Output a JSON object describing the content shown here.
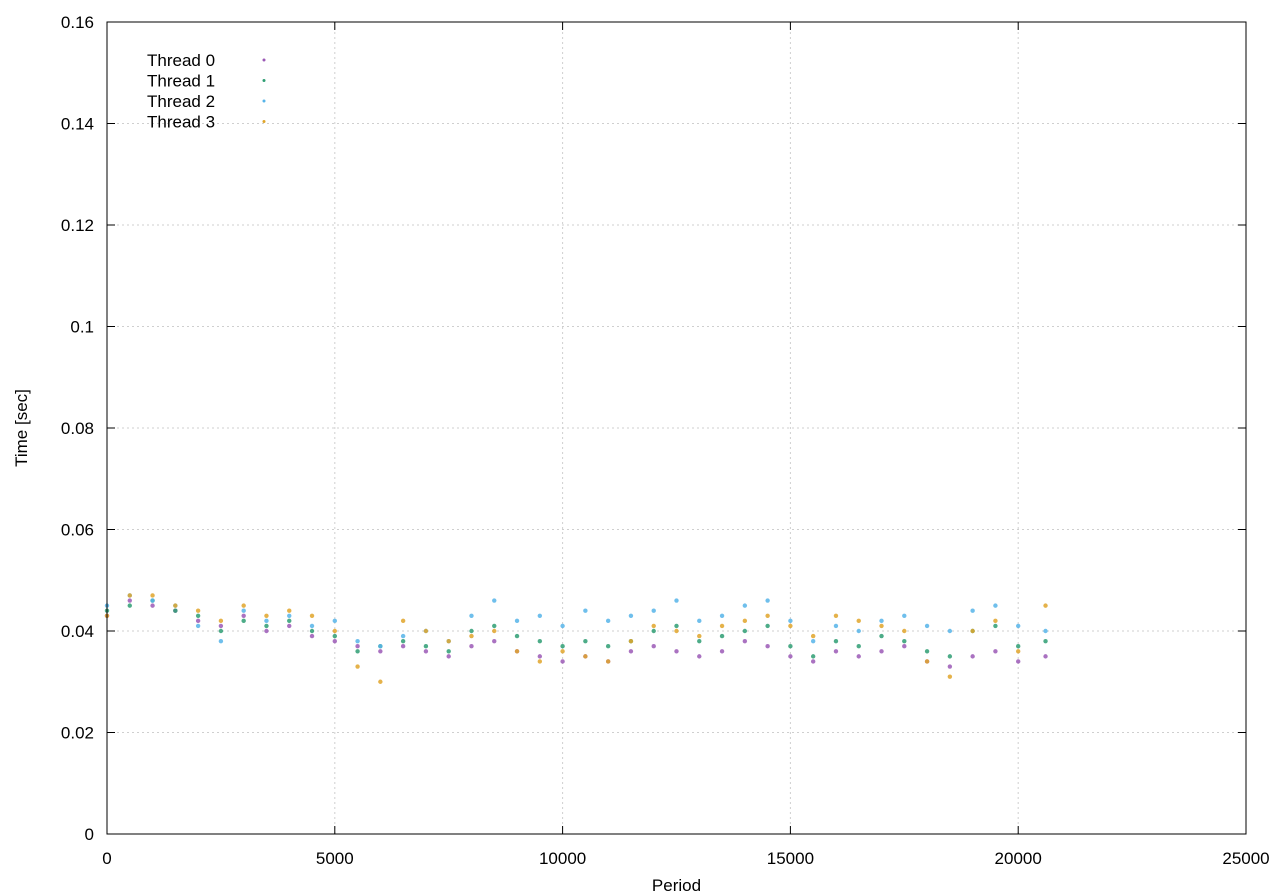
{
  "chart_data": {
    "type": "scatter",
    "xlabel": "Period",
    "ylabel": "Time [sec]",
    "xlim": [
      0,
      25000
    ],
    "ylim": [
      0,
      0.16
    ],
    "xticks": [
      "0",
      "5000",
      "10000",
      "15000",
      "20000",
      "25000"
    ],
    "yticks": [
      "0",
      "0.02",
      "0.04",
      "0.06",
      "0.08",
      "0.1",
      "0.12",
      "0.14",
      "0.16"
    ],
    "grid": true,
    "legend_position": "top-left",
    "series": [
      {
        "name": "Thread 0",
        "color": "#9b59b6",
        "points": [
          [
            0,
            0.043
          ],
          [
            500,
            0.046
          ],
          [
            1000,
            0.045
          ],
          [
            1500,
            0.044
          ],
          [
            2000,
            0.042
          ],
          [
            2500,
            0.041
          ],
          [
            3000,
            0.043
          ],
          [
            3500,
            0.04
          ],
          [
            4000,
            0.041
          ],
          [
            4500,
            0.039
          ],
          [
            5000,
            0.038
          ],
          [
            5500,
            0.037
          ],
          [
            6000,
            0.036
          ],
          [
            6500,
            0.037
          ],
          [
            7000,
            0.036
          ],
          [
            7500,
            0.035
          ],
          [
            8000,
            0.037
          ],
          [
            8500,
            0.038
          ],
          [
            9000,
            0.036
          ],
          [
            9500,
            0.035
          ],
          [
            10000,
            0.034
          ],
          [
            10500,
            0.035
          ],
          [
            11000,
            0.034
          ],
          [
            11500,
            0.036
          ],
          [
            12000,
            0.037
          ],
          [
            12500,
            0.036
          ],
          [
            13000,
            0.035
          ],
          [
            13500,
            0.036
          ],
          [
            14000,
            0.038
          ],
          [
            14500,
            0.037
          ],
          [
            15000,
            0.035
          ],
          [
            15500,
            0.034
          ],
          [
            16000,
            0.036
          ],
          [
            16500,
            0.035
          ],
          [
            17000,
            0.036
          ],
          [
            17500,
            0.037
          ],
          [
            18000,
            0.034
          ],
          [
            18500,
            0.033
          ],
          [
            19000,
            0.035
          ],
          [
            19500,
            0.036
          ],
          [
            20000,
            0.034
          ],
          [
            20600,
            0.035
          ]
        ]
      },
      {
        "name": "Thread 1",
        "color": "#2e9e73",
        "points": [
          [
            0,
            0.044
          ],
          [
            500,
            0.045
          ],
          [
            1000,
            0.046
          ],
          [
            1500,
            0.044
          ],
          [
            2000,
            0.043
          ],
          [
            2500,
            0.04
          ],
          [
            3000,
            0.042
          ],
          [
            3500,
            0.041
          ],
          [
            4000,
            0.042
          ],
          [
            4500,
            0.04
          ],
          [
            5000,
            0.039
          ],
          [
            5500,
            0.036
          ],
          [
            6000,
            0.037
          ],
          [
            6500,
            0.038
          ],
          [
            7000,
            0.037
          ],
          [
            7500,
            0.036
          ],
          [
            8000,
            0.04
          ],
          [
            8500,
            0.041
          ],
          [
            9000,
            0.039
          ],
          [
            9500,
            0.038
          ],
          [
            10000,
            0.037
          ],
          [
            10500,
            0.038
          ],
          [
            11000,
            0.037
          ],
          [
            11500,
            0.038
          ],
          [
            12000,
            0.04
          ],
          [
            12500,
            0.041
          ],
          [
            13000,
            0.038
          ],
          [
            13500,
            0.039
          ],
          [
            14000,
            0.04
          ],
          [
            14500,
            0.041
          ],
          [
            15000,
            0.037
          ],
          [
            15500,
            0.035
          ],
          [
            16000,
            0.038
          ],
          [
            16500,
            0.037
          ],
          [
            17000,
            0.039
          ],
          [
            17500,
            0.038
          ],
          [
            18000,
            0.036
          ],
          [
            18500,
            0.035
          ],
          [
            19000,
            0.04
          ],
          [
            19500,
            0.041
          ],
          [
            20000,
            0.037
          ],
          [
            20600,
            0.038
          ]
        ]
      },
      {
        "name": "Thread 2",
        "color": "#56b4e9",
        "points": [
          [
            0,
            0.045
          ],
          [
            500,
            0.047
          ],
          [
            1000,
            0.046
          ],
          [
            1500,
            0.045
          ],
          [
            2000,
            0.041
          ],
          [
            2500,
            0.038
          ],
          [
            3000,
            0.044
          ],
          [
            3500,
            0.042
          ],
          [
            4000,
            0.043
          ],
          [
            4500,
            0.041
          ],
          [
            5000,
            0.042
          ],
          [
            5500,
            0.038
          ],
          [
            6000,
            0.037
          ],
          [
            6500,
            0.039
          ],
          [
            7000,
            0.04
          ],
          [
            7500,
            0.038
          ],
          [
            8000,
            0.043
          ],
          [
            8500,
            0.046
          ],
          [
            9000,
            0.042
          ],
          [
            9500,
            0.043
          ],
          [
            10000,
            0.041
          ],
          [
            10500,
            0.044
          ],
          [
            11000,
            0.042
          ],
          [
            11500,
            0.043
          ],
          [
            12000,
            0.044
          ],
          [
            12500,
            0.046
          ],
          [
            13000,
            0.042
          ],
          [
            13500,
            0.043
          ],
          [
            14000,
            0.045
          ],
          [
            14500,
            0.046
          ],
          [
            15000,
            0.042
          ],
          [
            15500,
            0.038
          ],
          [
            16000,
            0.041
          ],
          [
            16500,
            0.04
          ],
          [
            17000,
            0.042
          ],
          [
            17500,
            0.043
          ],
          [
            18000,
            0.041
          ],
          [
            18500,
            0.04
          ],
          [
            19000,
            0.044
          ],
          [
            19500,
            0.045
          ],
          [
            20000,
            0.041
          ],
          [
            20600,
            0.04
          ]
        ]
      },
      {
        "name": "Thread 3",
        "color": "#e0a52a",
        "points": [
          [
            0,
            0.043
          ],
          [
            500,
            0.047
          ],
          [
            1000,
            0.047
          ],
          [
            1500,
            0.045
          ],
          [
            2000,
            0.044
          ],
          [
            2500,
            0.042
          ],
          [
            3000,
            0.045
          ],
          [
            3500,
            0.043
          ],
          [
            4000,
            0.044
          ],
          [
            4500,
            0.043
          ],
          [
            5000,
            0.04
          ],
          [
            5500,
            0.033
          ],
          [
            6000,
            0.03
          ],
          [
            6500,
            0.042
          ],
          [
            7000,
            0.04
          ],
          [
            7500,
            0.038
          ],
          [
            8000,
            0.039
          ],
          [
            8500,
            0.04
          ],
          [
            9000,
            0.036
          ],
          [
            9500,
            0.034
          ],
          [
            10000,
            0.036
          ],
          [
            10500,
            0.035
          ],
          [
            11000,
            0.034
          ],
          [
            11500,
            0.038
          ],
          [
            12000,
            0.041
          ],
          [
            12500,
            0.04
          ],
          [
            13000,
            0.039
          ],
          [
            13500,
            0.041
          ],
          [
            14000,
            0.042
          ],
          [
            14500,
            0.043
          ],
          [
            15000,
            0.041
          ],
          [
            15500,
            0.039
          ],
          [
            16000,
            0.043
          ],
          [
            16500,
            0.042
          ],
          [
            17000,
            0.041
          ],
          [
            17500,
            0.04
          ],
          [
            18000,
            0.034
          ],
          [
            18500,
            0.031
          ],
          [
            19000,
            0.04
          ],
          [
            19500,
            0.042
          ],
          [
            20000,
            0.036
          ],
          [
            20600,
            0.045
          ]
        ]
      }
    ]
  }
}
